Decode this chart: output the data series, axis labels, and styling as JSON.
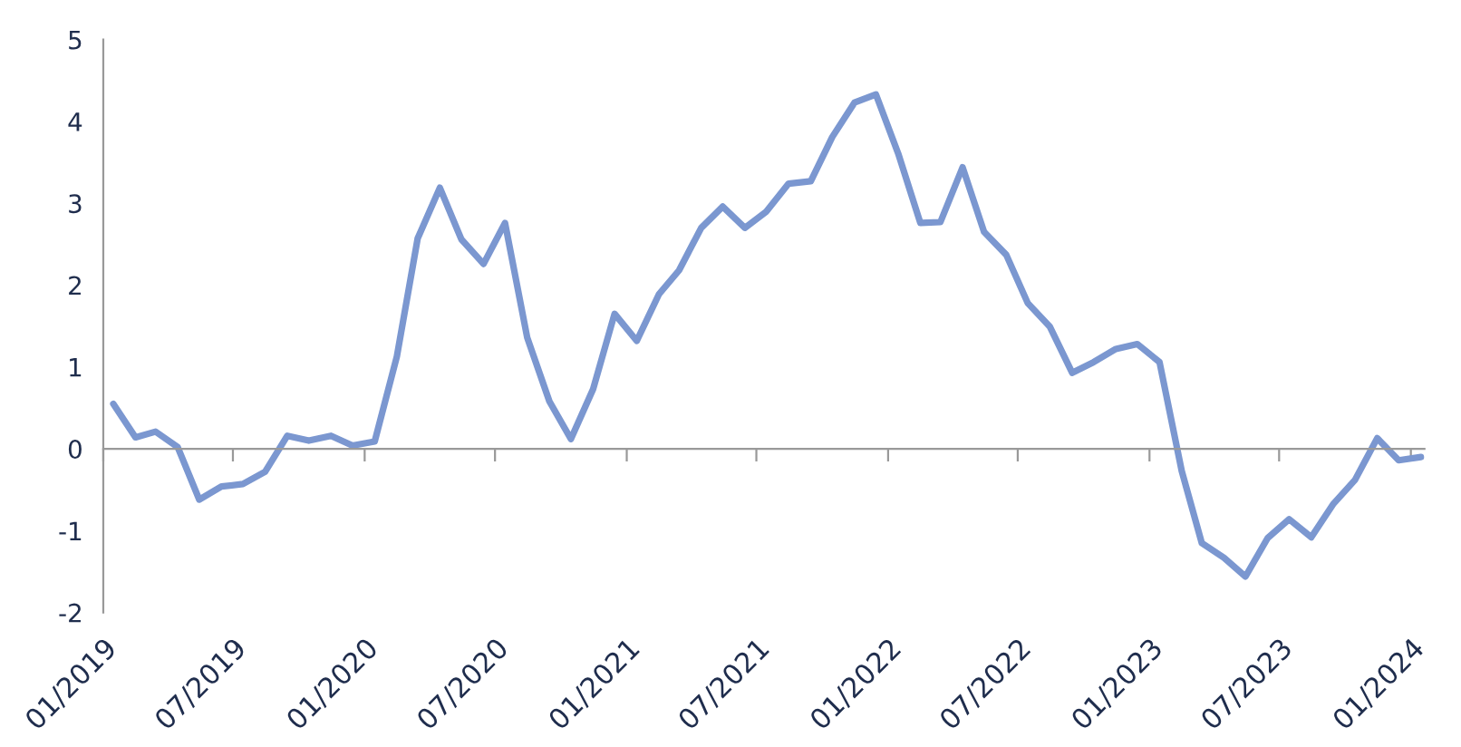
{
  "chart_data": {
    "type": "line",
    "x": [
      "2019-01-15",
      "2019-02-15",
      "2019-03-15",
      "2019-04-15",
      "2019-05-15",
      "2019-06-15",
      "2019-07-15",
      "2019-08-15",
      "2019-09-15",
      "2019-10-15",
      "2019-11-15",
      "2019-12-15",
      "2020-01-15",
      "2020-02-15",
      "2020-03-15",
      "2020-04-15",
      "2020-05-15",
      "2020-06-15",
      "2020-07-15",
      "2020-08-15",
      "2020-09-15",
      "2020-10-15",
      "2020-11-15",
      "2020-12-15",
      "2021-01-15",
      "2021-02-15",
      "2021-03-15",
      "2021-04-15",
      "2021-05-15",
      "2021-06-15",
      "2021-07-15",
      "2021-08-15",
      "2021-09-15",
      "2021-10-15",
      "2021-11-15",
      "2021-12-15",
      "2022-01-15",
      "2022-02-15",
      "2022-03-15",
      "2022-04-15",
      "2022-05-15",
      "2022-06-15",
      "2022-07-15",
      "2022-08-15",
      "2022-09-15",
      "2022-10-15",
      "2022-11-15",
      "2022-12-15",
      "2023-01-15",
      "2023-02-15",
      "2023-03-15",
      "2023-04-15",
      "2023-05-15",
      "2023-06-15",
      "2023-07-15",
      "2023-08-15",
      "2023-09-15",
      "2023-10-15",
      "2023-11-15",
      "2023-12-15",
      "2024-01-15"
    ],
    "series": [
      {
        "color": "#7b97d0",
        "values": [
          0.55,
          0.14,
          0.21,
          0.02,
          -0.62,
          -0.46,
          -0.43,
          -0.28,
          0.16,
          0.1,
          0.16,
          0.04,
          0.09,
          1.13,
          2.57,
          3.19,
          2.56,
          2.26,
          2.76,
          1.36,
          0.58,
          0.12,
          0.73,
          1.65,
          1.32,
          1.89,
          2.18,
          2.7,
          2.96,
          2.7,
          2.9,
          3.24,
          3.27,
          3.81,
          4.23,
          4.33,
          3.61,
          2.76,
          2.77,
          3.44,
          2.65,
          2.37,
          1.78,
          1.49,
          0.93,
          1.06,
          1.22,
          1.28,
          1.06,
          -0.27,
          -1.15,
          -1.33,
          -1.56,
          -1.09,
          -0.86,
          -1.08,
          -0.67,
          -0.38,
          0.13,
          -0.14,
          -0.1
        ]
      }
    ],
    "xlim": [
      "2019-01-01",
      "2024-01-20"
    ],
    "xticks": [
      {
        "value": "2019-01-01",
        "label": "01/2019"
      },
      {
        "value": "2019-07-01",
        "label": "07/2019"
      },
      {
        "value": "2020-01-01",
        "label": "01/2020"
      },
      {
        "value": "2020-07-01",
        "label": "07/2020"
      },
      {
        "value": "2021-01-01",
        "label": "01/2021"
      },
      {
        "value": "2021-07-01",
        "label": "07/2021"
      },
      {
        "value": "2022-01-01",
        "label": "01/2022"
      },
      {
        "value": "2022-07-01",
        "label": "07/2022"
      },
      {
        "value": "2023-01-01",
        "label": "01/2023"
      },
      {
        "value": "2023-07-01",
        "label": "07/2023"
      },
      {
        "value": "2024-01-01",
        "label": "01/2024"
      }
    ],
    "ylim": [
      -2,
      5
    ],
    "yticks": [
      -2,
      -1,
      0,
      1,
      2,
      3,
      4,
      5
    ],
    "marker": "none",
    "line_style": "solid"
  }
}
